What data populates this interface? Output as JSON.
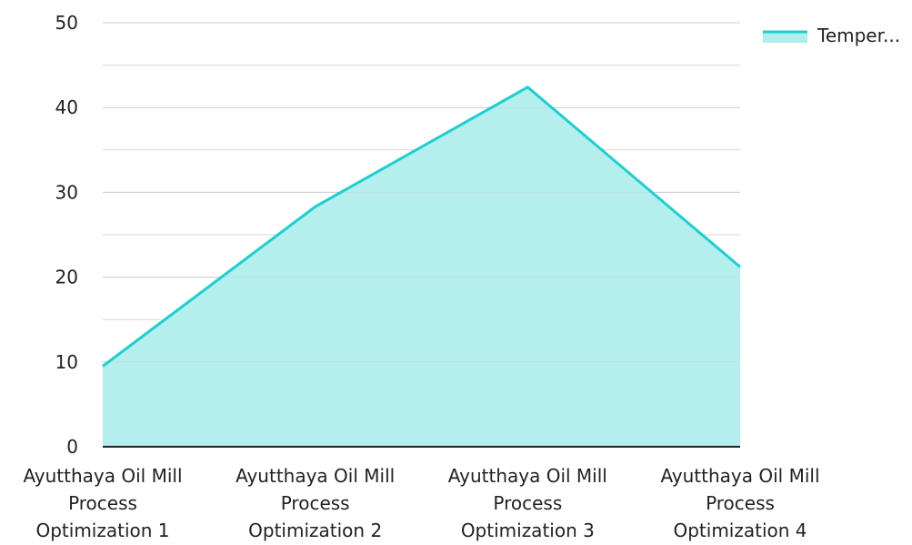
{
  "colors": {
    "line": "#1ccfd1",
    "fill": "#b0eeec",
    "grid": "#d9d9d9",
    "grid_major": "#cccccc",
    "axis": "#222222",
    "text": "#222222"
  },
  "chart_data": {
    "type": "area",
    "categories": [
      [
        "Ayutthaya Oil Mill",
        "Process",
        "Optimization 1"
      ],
      [
        "Ayutthaya Oil Mill",
        "Process",
        "Optimization 2"
      ],
      [
        "Ayutthaya Oil Mill",
        "Process",
        "Optimization 3"
      ],
      [
        "Ayutthaya Oil Mill",
        "Process",
        "Optimization 4"
      ]
    ],
    "series": [
      {
        "name": "Temper...",
        "values": [
          9.5,
          28.3,
          42.4,
          21.2
        ]
      }
    ],
    "title": "",
    "xlabel": "",
    "ylabel": "",
    "ylim": [
      0,
      50
    ],
    "yticks": [
      0,
      10,
      20,
      30,
      40,
      50
    ],
    "grid": true,
    "legend": "top-right"
  }
}
